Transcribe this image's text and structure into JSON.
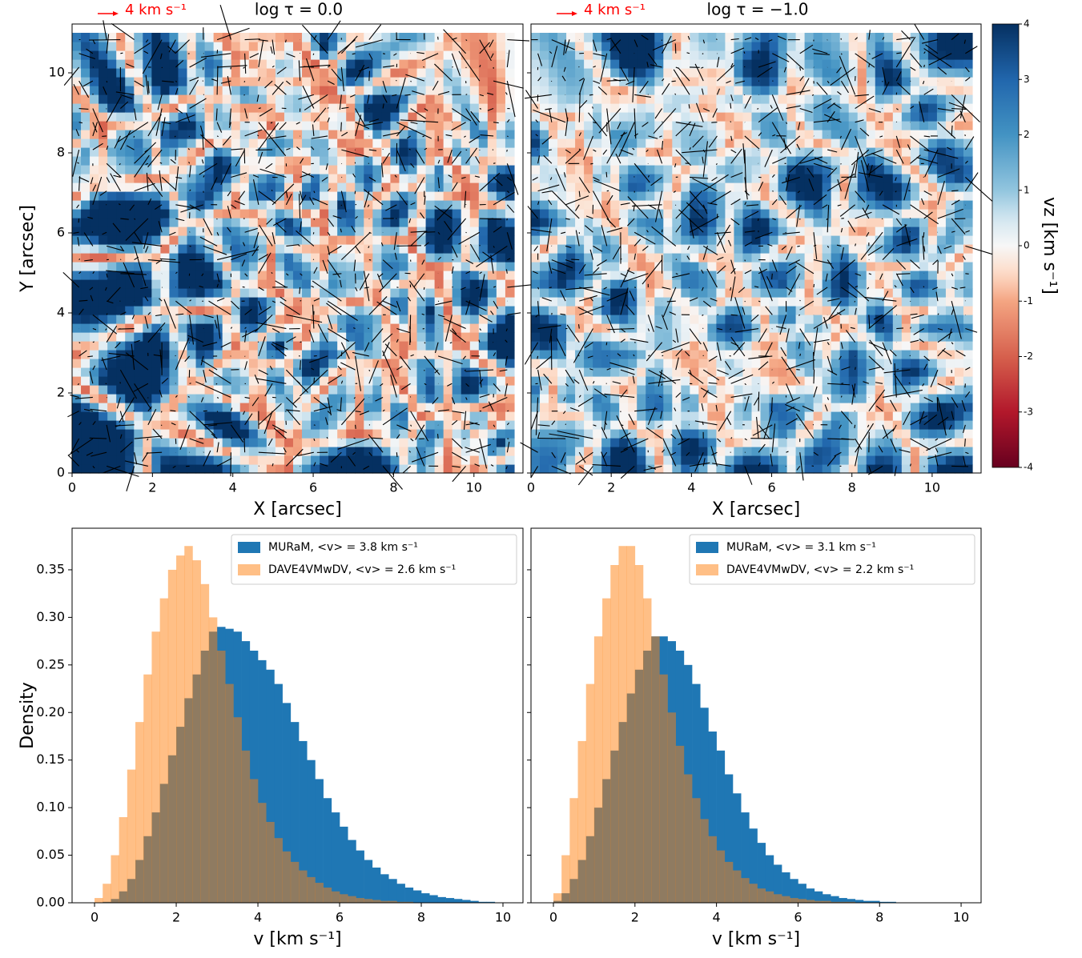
{
  "chart_data": [
    {
      "type": "heatmap",
      "title": "log τ = 0.0",
      "annotation": "4 km s⁻¹",
      "annotation_color": "#ff0000",
      "xlabel": "X [arcsec]",
      "ylabel": "Y [arcsec]",
      "xlim": [
        0,
        11.22
      ],
      "ylim": [
        0,
        11.22
      ],
      "xticks": [
        0,
        2,
        4,
        6,
        8,
        10
      ],
      "yticks": [
        0,
        2,
        4,
        6,
        8,
        10
      ],
      "colormap": "RdBu_r"
    },
    {
      "type": "heatmap",
      "title": "log τ = −1.0",
      "annotation": "4 km s⁻¹",
      "annotation_color": "#ff0000",
      "xlabel": "X [arcsec]",
      "xlim": [
        0,
        11.22
      ],
      "ylim": [
        0,
        11.22
      ],
      "sharey": true,
      "xticks": [
        0,
        2,
        4,
        6,
        8,
        10
      ],
      "yticks": [
        0,
        2,
        4,
        6,
        8,
        10
      ],
      "colormap": "RdBu_r",
      "colorbar": {
        "label": "vz [km s⁻¹]",
        "lim": [
          -4,
          4
        ],
        "ticks": [
          -4,
          -3,
          -2,
          -1,
          0,
          1,
          2,
          3,
          4
        ]
      }
    },
    {
      "type": "histogram",
      "xlabel": "v [km s⁻¹]",
      "ylabel": "Density",
      "xlim": [
        -0.55,
        10.49
      ],
      "ylim": [
        0,
        0.3937
      ],
      "xticks": [
        0,
        2,
        4,
        6,
        8,
        10
      ],
      "yticks": [
        {
          "value": 0,
          "label": "0.00"
        },
        0.05,
        {
          "value": 0.1,
          "label": "0.10"
        },
        0.15,
        {
          "value": 0.2,
          "label": "0.20"
        },
        0.25,
        {
          "value": 0.3,
          "label": "0.30"
        },
        0.35
      ],
      "legend": "upper right",
      "bins": [
        0,
        0.2,
        0.4,
        0.6,
        0.8,
        1,
        1.2,
        1.4,
        1.6,
        1.8,
        2,
        2.2,
        2.4,
        2.6,
        2.8,
        3,
        3.2,
        3.4,
        3.6,
        3.8,
        4,
        4.2,
        4.4,
        4.6,
        4.8,
        5,
        5.2,
        5.4,
        5.6,
        5.8,
        6,
        6.2,
        6.4,
        6.6,
        6.8,
        7,
        7.2,
        7.4,
        7.6,
        7.8,
        8,
        8.2,
        8.4,
        8.6,
        8.8,
        9,
        9.2,
        9.4,
        9.6,
        9.8,
        10
      ],
      "series": [
        {
          "name": "MURaM, <v> = 3.8 km s⁻¹",
          "color": "#1f77b4",
          "alpha": 1,
          "values": [
            0,
            0.001,
            0.004,
            0.012,
            0.025,
            0.045,
            0.07,
            0.095,
            0.125,
            0.155,
            0.185,
            0.215,
            0.24,
            0.265,
            0.285,
            0.29,
            0.288,
            0.285,
            0.275,
            0.265,
            0.255,
            0.245,
            0.23,
            0.21,
            0.19,
            0.17,
            0.15,
            0.13,
            0.11,
            0.095,
            0.08,
            0.066,
            0.055,
            0.045,
            0.037,
            0.03,
            0.025,
            0.02,
            0.016,
            0.013,
            0.01,
            0.008,
            0.006,
            0.005,
            0.004,
            0.003,
            0.002,
            0.001,
            0.001,
            0
          ]
        },
        {
          "name": "DAVE4VMwDV, <v> = 2.6 km s⁻¹",
          "color": "#ff7f0e",
          "alpha": 0.5,
          "values": [
            0.005,
            0.02,
            0.05,
            0.09,
            0.14,
            0.19,
            0.24,
            0.285,
            0.32,
            0.35,
            0.365,
            0.375,
            0.36,
            0.335,
            0.3,
            0.265,
            0.23,
            0.195,
            0.16,
            0.13,
            0.105,
            0.085,
            0.068,
            0.054,
            0.043,
            0.034,
            0.027,
            0.021,
            0.016,
            0.012,
            0.009,
            0.007,
            0.005,
            0.004,
            0.003,
            0.002,
            0.002,
            0.001,
            0.001,
            0,
            0,
            0,
            0,
            0,
            0,
            0,
            0,
            0,
            0,
            0
          ]
        }
      ]
    },
    {
      "type": "histogram",
      "xlabel": "v [km s⁻¹]",
      "xlim": [
        -0.55,
        10.49
      ],
      "ylim": [
        0,
        0.3937
      ],
      "sharey": true,
      "xticks": [
        0,
        2,
        4,
        6,
        8,
        10
      ],
      "yticks": [
        0,
        0.05,
        0.1,
        0.15,
        0.2,
        0.25,
        0.3,
        0.35
      ],
      "legend": "upper right",
      "bins": [
        0,
        0.2,
        0.4,
        0.6,
        0.8,
        1,
        1.2,
        1.4,
        1.6,
        1.8,
        2,
        2.2,
        2.4,
        2.6,
        2.8,
        3,
        3.2,
        3.4,
        3.6,
        3.8,
        4,
        4.2,
        4.4,
        4.6,
        4.8,
        5,
        5.2,
        5.4,
        5.6,
        5.8,
        6,
        6.2,
        6.4,
        6.6,
        6.8,
        7,
        7.2,
        7.4,
        7.6,
        7.8,
        8,
        8.2,
        8.4,
        8.6,
        8.8,
        9,
        9.2,
        9.4,
        9.6,
        9.8,
        10
      ],
      "series": [
        {
          "name": "MURaM, <v> = 3.1 km s⁻¹",
          "color": "#1f77b4",
          "alpha": 1,
          "values": [
            0.002,
            0.01,
            0.025,
            0.045,
            0.07,
            0.1,
            0.13,
            0.16,
            0.19,
            0.22,
            0.245,
            0.265,
            0.28,
            0.28,
            0.275,
            0.265,
            0.25,
            0.23,
            0.205,
            0.18,
            0.16,
            0.135,
            0.115,
            0.095,
            0.078,
            0.063,
            0.05,
            0.04,
            0.032,
            0.025,
            0.02,
            0.015,
            0.012,
            0.009,
            0.007,
            0.005,
            0.004,
            0.003,
            0.002,
            0.002,
            0.001,
            0.001,
            0,
            0,
            0,
            0,
            0,
            0,
            0,
            0
          ]
        },
        {
          "name": "DAVE4VMwDV, <v> = 2.2 km s⁻¹",
          "color": "#ff7f0e",
          "alpha": 0.5,
          "values": [
            0.01,
            0.05,
            0.11,
            0.17,
            0.23,
            0.28,
            0.32,
            0.355,
            0.375,
            0.375,
            0.355,
            0.32,
            0.28,
            0.24,
            0.2,
            0.165,
            0.135,
            0.11,
            0.088,
            0.07,
            0.055,
            0.043,
            0.034,
            0.026,
            0.02,
            0.015,
            0.012,
            0.009,
            0.007,
            0.005,
            0.004,
            0.003,
            0.002,
            0.002,
            0.001,
            0.001,
            0.001,
            0,
            0,
            0,
            0,
            0,
            0,
            0,
            0,
            0,
            0,
            0,
            0,
            0
          ]
        }
      ]
    }
  ]
}
